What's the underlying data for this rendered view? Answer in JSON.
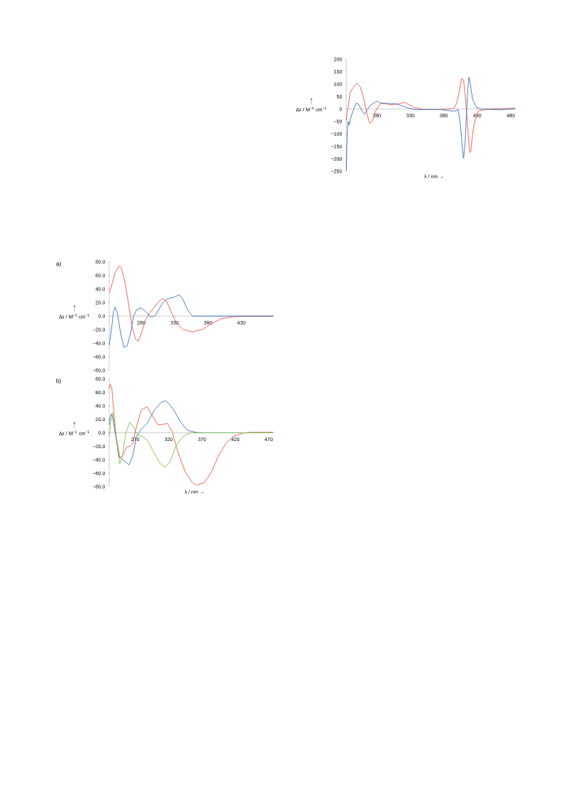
{
  "chart_data": [
    {
      "type": "line",
      "xlabel": "λ / nm →",
      "ylabel": "Δε / M$^{−1}$ cm$^{−1}$",
      "xlim": [
        234,
        487
      ],
      "ylim": [
        -250,
        200
      ],
      "xticks": [
        280,
        330,
        380,
        430,
        480
      ],
      "yticks": [
        {
          "value": -250,
          "label": "−250"
        },
        {
          "value": -200,
          "label": "−200"
        },
        {
          "value": -150,
          "label": "−150"
        },
        {
          "value": -100,
          "label": "−100"
        },
        {
          "value": -50,
          "label": "−50"
        },
        0,
        50,
        100,
        150,
        200
      ],
      "series": [
        {
          "color": "#f0564a",
          "x": [
            234.3,
            235.4,
            237,
            239.7,
            244.3,
            249.7,
            255,
            260.4,
            265.7,
            269.3,
            272.9,
            278.2,
            285.4,
            292.5,
            299.7,
            310.4,
            321.1,
            328.2,
            337.2,
            349.7,
            374.6,
            392.5,
            396,
            399.6,
            403.2,
            406.8,
            409.6,
            412.1,
            414.6,
            416.8,
            418.6,
            420.4,
            422.9,
            426.5,
            431.8,
            446,
            464,
            487
          ],
          "values": [
            -45,
            -16,
            8,
            65,
            85,
            104,
            90,
            41,
            -26,
            -57,
            -50,
            -7,
            22,
            22,
            17,
            20,
            27,
            17,
            5,
            -2,
            -2,
            1,
            5,
            27,
            70,
            123,
            118,
            51,
            -26,
            -113,
            -175,
            -171,
            -104,
            -45,
            -7,
            0,
            1,
            3
          ]
        },
        {
          "color": "#3e6fc2",
          "x": [
            234.3,
            235,
            236.1,
            237.2,
            238.2,
            240.7,
            244.3,
            249,
            253.2,
            257.5,
            261.4,
            265.7,
            271.1,
            280,
            285.4,
            296.1,
            306.8,
            317.5,
            328.2,
            338.9,
            356.8,
            374.6,
            388.9,
            396,
            401.4,
            405,
            407.9,
            409.6,
            411.8,
            414,
            415.8,
            417.6,
            419.8,
            423,
            428.4,
            435.5,
            464,
            487
          ],
          "values": [
            -248,
            -151,
            -65,
            -50,
            -65,
            -36,
            -7,
            24,
            17,
            -7,
            -21,
            -2,
            17,
            32,
            24,
            22,
            22,
            13,
            3,
            -3,
            -2,
            -2,
            -7,
            -9,
            -2,
            -65,
            -161,
            -199,
            -141,
            -16,
            80,
            128,
            99,
            41,
            8,
            0,
            -3,
            1
          ]
        }
      ]
    },
    {
      "type": "line",
      "ylabel": "Δε / M$^{−1}$ cm$^{−1}$",
      "annotations": [
        "a)"
      ],
      "xlim": [
        232,
        478
      ],
      "ylim": [
        -80,
        80
      ],
      "xticks": [
        280,
        330,
        380,
        430
      ],
      "yticks": [
        {
          "value": -80,
          "label": "−80.0"
        },
        {
          "value": -60,
          "label": "−60.0"
        },
        {
          "value": -40,
          "label": "−40.0"
        },
        {
          "value": -20,
          "label": "−20.0"
        },
        {
          "value": 0,
          "label": "0.0"
        },
        {
          "value": 20,
          "label": "20.0"
        },
        {
          "value": 40,
          "label": "40.0"
        },
        {
          "value": 60,
          "label": "60.0"
        },
        {
          "value": 80,
          "label": "80.0"
        }
      ],
      "series": [
        {
          "color": "#f0564a",
          "x": [
            232,
            235.6,
            241,
            246.3,
            249.9,
            255.2,
            260.6,
            266,
            271.3,
            275.6,
            280.2,
            285.6,
            292.7,
            299.9,
            307,
            312.4,
            317.7,
            324.9,
            332,
            342.7,
            357,
            371.3,
            385.6,
            399.9,
            417.7,
            439.1,
            478
          ],
          "values": [
            34.8,
            45,
            64.7,
            73.5,
            71.7,
            52,
            20.7,
            -14.4,
            -33.7,
            -37.3,
            -25,
            -7.4,
            4.9,
            13.7,
            22.5,
            26,
            22.5,
            6.7,
            -9.1,
            -19.7,
            -23.2,
            -19.7,
            -10.9,
            -3.9,
            -1,
            0,
            0
          ]
        },
        {
          "color": "#3e6fc2",
          "x": [
            232,
            235.6,
            238.4,
            241,
            244.5,
            249.1,
            254.1,
            258.8,
            264.1,
            268.4,
            273,
            280.2,
            287.4,
            292.7,
            297,
            301.6,
            310.6,
            317.7,
            328.4,
            337.4,
            342.7,
            349.9,
            357,
            382,
            478
          ],
          "values": [
            -42.5,
            -18,
            6.7,
            13.7,
            3.2,
            -25,
            -46,
            -44.3,
            -25,
            -0.4,
            9.5,
            12,
            6,
            -0.4,
            -1,
            1.4,
            17.2,
            25,
            27.8,
            31.3,
            24.3,
            8.4,
            0,
            0,
            0
          ]
        }
      ]
    },
    {
      "type": "line",
      "xlabel": "λ / nm →",
      "ylabel": "Δε / M$^{−1}$ cm$^{−1}$",
      "annotations": [
        "b)"
      ],
      "xlim": [
        231,
        477
      ],
      "ylim": [
        -80,
        80
      ],
      "xticks": [
        270,
        320,
        370,
        420,
        470
      ],
      "yticks": [
        {
          "value": -80,
          "label": "−80.0"
        },
        {
          "value": -60,
          "label": "−60.0"
        },
        {
          "value": -40,
          "label": "−40.0"
        },
        {
          "value": -20,
          "label": "−20.0"
        },
        {
          "value": 0,
          "label": "0.0"
        },
        {
          "value": 20,
          "label": "20.0"
        },
        {
          "value": 40,
          "label": "40.0"
        },
        {
          "value": 60,
          "label": "60.0"
        },
        {
          "value": 80,
          "label": "80.0"
        }
      ],
      "series": [
        {
          "color": "#f0564a",
          "x": [
            231,
            232.5,
            235,
            237.8,
            241.4,
            246.8,
            251.4,
            257.5,
            262.8,
            266.4,
            271.8,
            278.9,
            287.8,
            295,
            303.9,
            311.1,
            318.2,
            325.4,
            334.3,
            345,
            355.7,
            362.8,
            373.6,
            384.3,
            395,
            405.7,
            416.4,
            430.7,
            441.4,
            477
          ],
          "values": [
            65.2,
            72.2,
            65.2,
            33.5,
            -5.3,
            -37,
            -33.5,
            -21.1,
            -19.4,
            -15.9,
            8.8,
            33.5,
            38.8,
            26.4,
            12.3,
            12.3,
            14.1,
            1.8,
            -30,
            -58.2,
            -74,
            -77.5,
            -74,
            -58.2,
            -33.5,
            -15.9,
            -5.3,
            -0.7,
            0.7,
            0.7
          ]
        },
        {
          "color": "#3e6fc2",
          "x": [
            231,
            232.5,
            234.3,
            236.8,
            241.4,
            245.7,
            252.1,
            261,
            266.4,
            271.8,
            278.9,
            287.8,
            298.6,
            309.3,
            316.4,
            327.1,
            337.9,
            348.6,
            362.9,
            380.7,
            477
          ],
          "values": [
            12.3,
            24.7,
            28.2,
            19.4,
            -8.8,
            -35.2,
            -40.5,
            -47.6,
            -33.5,
            -5.3,
            5.3,
            14.1,
            33.5,
            45.8,
            47.6,
            35.2,
            15.9,
            3.5,
            0.4,
            0,
            0
          ]
        },
        {
          "color": "#7dc24a",
          "x": [
            231,
            233.2,
            236,
            239.6,
            244.3,
            246.8,
            250.3,
            256.4,
            262.1,
            268.2,
            273.6,
            280.7,
            287.8,
            298.6,
            307.5,
            314.6,
            321.8,
            330.7,
            341.4,
            352.1,
            380.7,
            477
          ],
          "values": [
            -5.3,
            15.9,
            30,
            8.8,
            -29.9,
            -45.8,
            -37,
            1.8,
            15.9,
            7,
            -3.5,
            -5.3,
            -10.6,
            -30,
            -45.8,
            -51.1,
            -44,
            -19.4,
            -5.3,
            0,
            0,
            0
          ]
        }
      ]
    }
  ]
}
